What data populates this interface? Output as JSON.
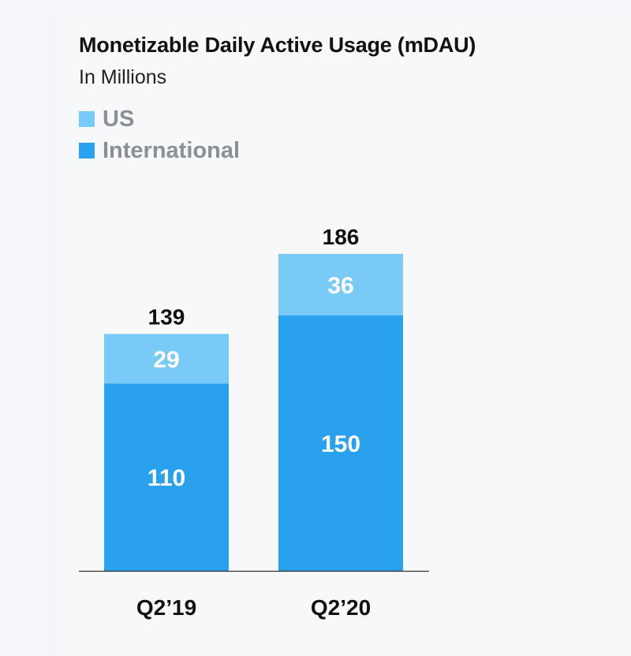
{
  "title": "Monetizable Daily Active Usage (mDAU)",
  "subtitle": "In Millions",
  "legend": [
    {
      "label": "US",
      "color": "#79caf6"
    },
    {
      "label": "International",
      "color": "#2aa1ec"
    }
  ],
  "chart_data": {
    "type": "bar",
    "stacked": true,
    "title": "Monetizable Daily Active Usage (mDAU)",
    "subtitle": "In Millions",
    "categories": [
      "Q2’19",
      "Q2’20"
    ],
    "series": [
      {
        "name": "International",
        "values": [
          110,
          150
        ],
        "color": "#2aa1ec"
      },
      {
        "name": "US",
        "values": [
          29,
          36
        ],
        "color": "#79caf6"
      }
    ],
    "totals": [
      139,
      186
    ],
    "ylim": [
      0,
      186
    ],
    "grid": false,
    "legend_position": "top-left"
  }
}
